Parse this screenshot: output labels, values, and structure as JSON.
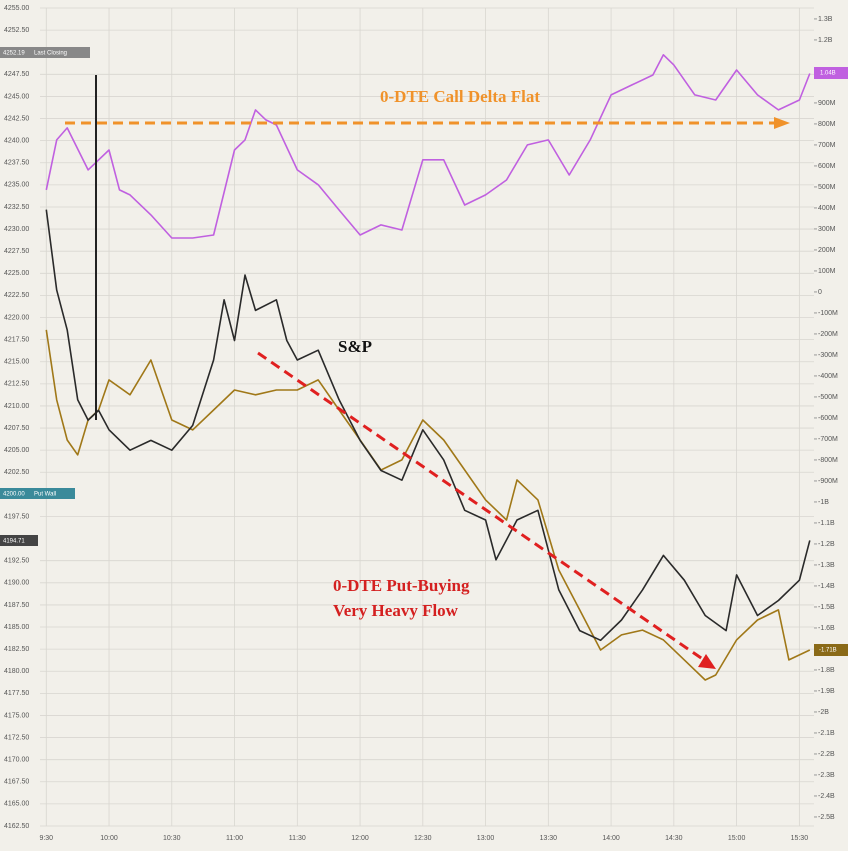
{
  "chart_data": {
    "type": "line",
    "xlim": [
      "9:27",
      "15:37"
    ],
    "xticks": [
      "9:30",
      "10:00",
      "10:30",
      "11:00",
      "11:30",
      "12:00",
      "12:30",
      "13:00",
      "13:30",
      "14:00",
      "14:30",
      "15:00",
      "15:30"
    ],
    "ylim": [
      4162.5,
      4255
    ],
    "yticks": [
      {
        "value": 4162.5,
        "label": "4162.50"
      },
      {
        "value": 4165,
        "label": "4165.00"
      },
      {
        "value": 4167.5,
        "label": "4167.50"
      },
      {
        "value": 4170,
        "label": "4170.00"
      },
      {
        "value": 4172.5,
        "label": "4172.50"
      },
      {
        "value": 4175,
        "label": "4175.00"
      },
      {
        "value": 4177.5,
        "label": "4177.50"
      },
      {
        "value": 4180,
        "label": "4180.00"
      },
      {
        "value": 4182.5,
        "label": "4182.50"
      },
      {
        "value": 4185,
        "label": "4185.00"
      },
      {
        "value": 4187.5,
        "label": "4187.50"
      },
      {
        "value": 4190,
        "label": "4190.00"
      },
      {
        "value": 4192.5,
        "label": "4192.50"
      },
      {
        "value": 4197.5,
        "label": "4197.50"
      },
      {
        "value": 4202.5,
        "label": "4202.50"
      },
      {
        "value": 4205,
        "label": "4205.00"
      },
      {
        "value": 4207.5,
        "label": "4207.50"
      },
      {
        "value": 4210,
        "label": "4210.00"
      },
      {
        "value": 4212.5,
        "label": "4212.50"
      },
      {
        "value": 4215,
        "label": "4215.00"
      },
      {
        "value": 4217.5,
        "label": "4217.50"
      },
      {
        "value": 4220,
        "label": "4220.00"
      },
      {
        "value": 4222.5,
        "label": "4222.50"
      },
      {
        "value": 4225,
        "label": "4225.00"
      },
      {
        "value": 4227.5,
        "label": "4227.50"
      },
      {
        "value": 4230,
        "label": "4230.00"
      },
      {
        "value": 4232.5,
        "label": "4232.50"
      },
      {
        "value": 4235,
        "label": "4235.00"
      },
      {
        "value": 4237.5,
        "label": "4237.50"
      },
      {
        "value": 4240,
        "label": "4240.00"
      },
      {
        "value": 4242.5,
        "label": "4242.50"
      },
      {
        "value": 4245,
        "label": "4245.00"
      },
      {
        "value": 4247.5,
        "label": "4247.50"
      },
      {
        "value": 4252.5,
        "label": "4252.50"
      },
      {
        "value": 4255,
        "label": "4255.00"
      }
    ],
    "y2lim": [
      -2543,
      1352
    ],
    "y2ticks": [
      {
        "value": 1300,
        "label": "1.3B"
      },
      {
        "value": 1200,
        "label": "1.2B"
      },
      {
        "value": 900,
        "label": "900M"
      },
      {
        "value": 800,
        "label": "800M"
      },
      {
        "value": 700,
        "label": "700M"
      },
      {
        "value": 600,
        "label": "600M"
      },
      {
        "value": 500,
        "label": "500M"
      },
      {
        "value": 400,
        "label": "400M"
      },
      {
        "value": 300,
        "label": "300M"
      },
      {
        "value": 200,
        "label": "200M"
      },
      {
        "value": 100,
        "label": "100M"
      },
      0,
      {
        "value": -100,
        "label": "-100M"
      },
      {
        "value": -200,
        "label": "-200M"
      },
      {
        "value": -300,
        "label": "-300M"
      },
      {
        "value": -400,
        "label": "-400M"
      },
      {
        "value": -500,
        "label": "-500M"
      },
      {
        "value": -600,
        "label": "-600M"
      },
      {
        "value": -700,
        "label": "-700M"
      },
      {
        "value": -800,
        "label": "-800M"
      },
      {
        "value": -900,
        "label": "-900M"
      },
      {
        "value": -1000,
        "label": "-1B"
      },
      {
        "value": -1100,
        "label": "-1.1B"
      },
      {
        "value": -1200,
        "label": "-1.2B"
      },
      {
        "value": -1300,
        "label": "-1.3B"
      },
      {
        "value": -1400,
        "label": "-1.4B"
      },
      {
        "value": -1500,
        "label": "-1.5B"
      },
      {
        "value": -1600,
        "label": "-1.6B"
      },
      {
        "value": -1800,
        "label": "-1.8B"
      },
      {
        "value": -1900,
        "label": "-1.9B"
      },
      {
        "value": -2000,
        "label": "-2B"
      },
      {
        "value": -2100,
        "label": "-2.1B"
      },
      {
        "value": -2200,
        "label": "-2.2B"
      },
      {
        "value": -2300,
        "label": "-2.3B"
      },
      {
        "value": -2400,
        "label": "-2.4B"
      },
      {
        "value": -2500,
        "label": "-2.5B"
      }
    ],
    "grid": true,
    "series": [
      {
        "color": "#c060e0",
        "axis": "y2",
        "x": [
          "9:30",
          "9:35",
          "9:40",
          "9:50",
          "10:00",
          "10:05",
          "10:10",
          "10:20",
          "10:30",
          "10:40",
          "10:50",
          "11:00",
          "11:05",
          "11:10",
          "11:15",
          "11:20",
          "11:30",
          "11:40",
          "11:50",
          "12:00",
          "12:10",
          "12:20",
          "12:30",
          "12:40",
          "12:50",
          "13:00",
          "13:10",
          "13:20",
          "13:30",
          "13:40",
          "13:50",
          "14:00",
          "14:10",
          "14:20",
          "14:25",
          "14:30",
          "14:40",
          "14:50",
          "15:00",
          "15:10",
          "15:20",
          "15:30",
          "15:35"
        ],
        "values": [
          486,
          724,
          781,
          581,
          676,
          486,
          462,
          367,
          257,
          257,
          271,
          676,
          724,
          867,
          819,
          795,
          581,
          510,
          390,
          271,
          319,
          295,
          629,
          629,
          414,
          462,
          533,
          700,
          724,
          557,
          724,
          938,
          986,
          1033,
          1129,
          1081,
          938,
          914,
          1057,
          938,
          867,
          914,
          1040
        ]
      },
      {
        "color": "#a07818",
        "axis": "y2",
        "x": [
          "9:30",
          "9:35",
          "9:40",
          "9:45",
          "9:50",
          "9:55",
          "10:00",
          "10:10",
          "10:20",
          "10:30",
          "10:40",
          "10:50",
          "11:00",
          "11:10",
          "11:20",
          "11:30",
          "11:40",
          "11:50",
          "12:00",
          "12:10",
          "12:20",
          "12:30",
          "12:40",
          "12:50",
          "13:00",
          "13:10",
          "13:15",
          "13:25",
          "13:35",
          "13:45",
          "13:55",
          "14:05",
          "14:15",
          "14:25",
          "14:35",
          "14:45",
          "14:50",
          "15:00",
          "15:10",
          "15:20",
          "15:25",
          "15:35"
        ],
        "values": [
          -181,
          -514,
          -705,
          -776,
          -610,
          -562,
          -419,
          -490,
          -324,
          -610,
          -657,
          -562,
          -467,
          -490,
          -467,
          -467,
          -419,
          -562,
          -705,
          -848,
          -800,
          -610,
          -705,
          -848,
          -990,
          -1086,
          -895,
          -990,
          -1324,
          -1514,
          -1705,
          -1633,
          -1610,
          -1657,
          -1752,
          -1848,
          -1824,
          -1657,
          -1562,
          -1514,
          -1752,
          -1705
        ]
      },
      {
        "color": "#2a2a2a",
        "axis": "y",
        "x": [
          "9:30",
          "9:35",
          "9:40",
          "9:45",
          "9:50",
          "9:55",
          "10:00",
          "10:10",
          "10:20",
          "10:30",
          "10:40",
          "10:50",
          "10:55",
          "11:00",
          "11:05",
          "11:10",
          "11:20",
          "11:25",
          "11:30",
          "11:40",
          "11:50",
          "12:00",
          "12:10",
          "12:20",
          "12:30",
          "12:40",
          "12:50",
          "13:00",
          "13:05",
          "13:15",
          "13:25",
          "13:35",
          "13:45",
          "13:55",
          "14:05",
          "14:15",
          "14:25",
          "14:35",
          "14:45",
          "14:55",
          "15:00",
          "15:10",
          "15:20",
          "15:30",
          "15:35"
        ],
        "values": [
          4232.2,
          4223.1,
          4218.6,
          4210.7,
          4208.4,
          4209.5,
          4207.3,
          4205.0,
          4206.1,
          4205.0,
          4207.8,
          4215.2,
          4222.0,
          4217.4,
          4224.8,
          4220.8,
          4222.0,
          4217.4,
          4215.2,
          4216.3,
          4210.7,
          4206.1,
          4202.7,
          4201.6,
          4207.3,
          4203.9,
          4198.2,
          4197.1,
          4192.6,
          4197.1,
          4198.2,
          4189.2,
          4184.6,
          4183.5,
          4185.8,
          4189.2,
          4193.1,
          4190.3,
          4186.3,
          4184.6,
          4190.9,
          4186.3,
          4188.0,
          4190.3,
          4194.8
        ]
      }
    ],
    "annotations": {
      "call_delta": "0-DTE Call Delta Flat",
      "sp": "S&P",
      "put_line1": "0-DTE Put-Buying",
      "put_line2": "Very Heavy Flow",
      "last_close_value": "4252.19",
      "last_close_label": "Last Closing",
      "put_wall_value": "4200.00",
      "put_wall_label": "Put Wall",
      "current_price": "4194.71",
      "call_delta_value": "1.04B",
      "put_delta_value": "-1.71B"
    }
  }
}
